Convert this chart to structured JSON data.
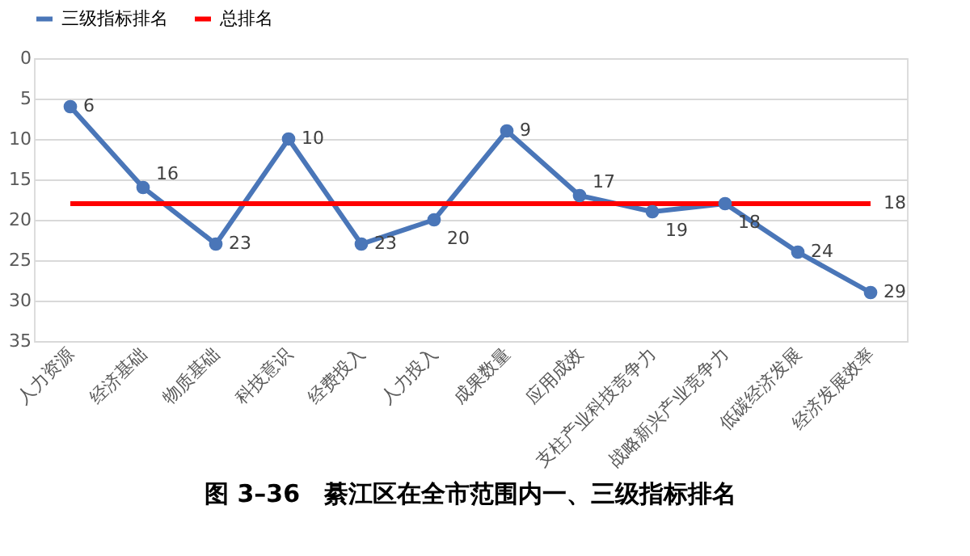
{
  "chart_data": {
    "type": "line",
    "title": "图 3–36　綦江区在全市范围内一、三级指标排名",
    "categories": [
      "人力资源",
      "经济基础",
      "物质基础",
      "科技意识",
      "经费投入",
      "人力投入",
      "成果数量",
      "应用成效",
      "支柱产业科技竞争力",
      "战略新兴产业竞争力",
      "低碳经济发展",
      "经济发展效率"
    ],
    "series": [
      {
        "name": "三级指标排名",
        "color": "#4a76b8",
        "marker": "circle",
        "values": [
          6,
          16,
          23,
          10,
          23,
          20,
          9,
          17,
          19,
          18,
          24,
          29
        ],
        "value_labels": [
          "6",
          "16",
          "23",
          "10",
          "23",
          "20",
          "9",
          "17",
          "19",
          "18",
          "24",
          "29"
        ]
      },
      {
        "name": "总排名",
        "color": "#ff0000",
        "marker": "none",
        "values": [
          18,
          18,
          18,
          18,
          18,
          18,
          18,
          18,
          18,
          18,
          18,
          18
        ],
        "value_labels": [
          null,
          null,
          null,
          null,
          null,
          null,
          null,
          null,
          null,
          null,
          null,
          "18"
        ]
      }
    ],
    "ylim": [
      35,
      0
    ],
    "yticks": [
      0,
      5,
      10,
      15,
      20,
      25,
      30,
      35
    ],
    "grid": "y",
    "legend": "top",
    "line_style": "solid"
  }
}
